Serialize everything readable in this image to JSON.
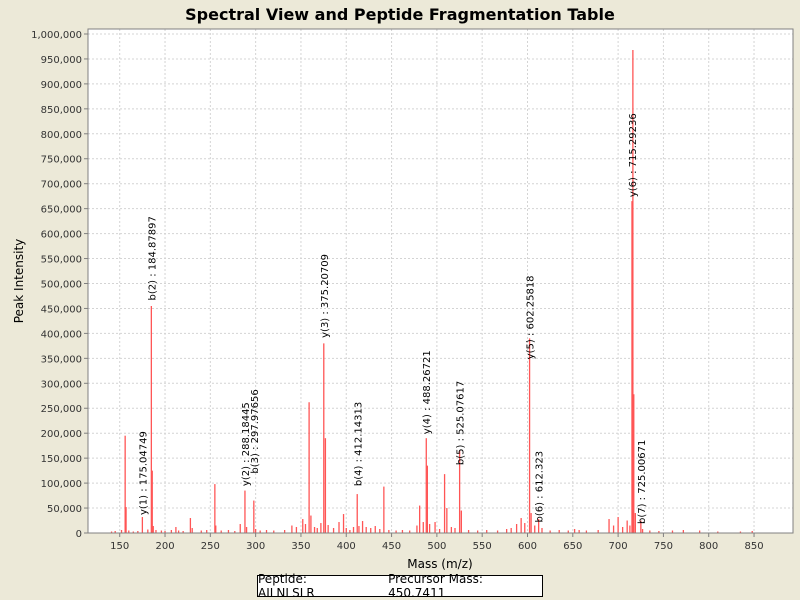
{
  "chart_data": {
    "type": "bar",
    "title": "Spectral View and Peptide Fragmentation Table",
    "xlabel": "Mass (m/z)",
    "ylabel": "Peak Intensity",
    "xlim": [
      115,
      893
    ],
    "ylim": [
      0,
      1010000
    ],
    "x_ticks": [
      150,
      200,
      250,
      300,
      350,
      400,
      450,
      500,
      550,
      600,
      650,
      700,
      750,
      800,
      850
    ],
    "y_ticks": [
      0,
      50000,
      100000,
      150000,
      200000,
      250000,
      300000,
      350000,
      400000,
      450000,
      500000,
      550000,
      600000,
      650000,
      700000,
      750000,
      800000,
      850000,
      900000,
      950000,
      1000000
    ],
    "y_tick_labels": [
      "0",
      "50,000",
      "100,000",
      "150,000",
      "200,000",
      "250,000",
      "300,000",
      "350,000",
      "400,000",
      "450,000",
      "500,000",
      "550,000",
      "600,000",
      "650,000",
      "700,000",
      "750,000",
      "800,000",
      "850,000",
      "900,000",
      "950,000",
      "1,000,000"
    ],
    "grid": true,
    "peak_color": "#ff5555",
    "peaks": [
      {
        "mz": 141,
        "intensity": 3000
      },
      {
        "mz": 145,
        "intensity": 4000
      },
      {
        "mz": 152,
        "intensity": 6000
      },
      {
        "mz": 156,
        "intensity": 195000
      },
      {
        "mz": 157,
        "intensity": 52000
      },
      {
        "mz": 160,
        "intensity": 5000
      },
      {
        "mz": 165,
        "intensity": 3000
      },
      {
        "mz": 170,
        "intensity": 4000
      },
      {
        "mz": 175.0,
        "intensity": 32000
      },
      {
        "mz": 181,
        "intensity": 7000
      },
      {
        "mz": 184.9,
        "intensity": 455000
      },
      {
        "mz": 185.9,
        "intensity": 125000
      },
      {
        "mz": 187,
        "intensity": 14000
      },
      {
        "mz": 190,
        "intensity": 6000
      },
      {
        "mz": 196,
        "intensity": 5000
      },
      {
        "mz": 200,
        "intensity": 4000
      },
      {
        "mz": 207,
        "intensity": 6000
      },
      {
        "mz": 212,
        "intensity": 12000
      },
      {
        "mz": 215,
        "intensity": 5000
      },
      {
        "mz": 220,
        "intensity": 4000
      },
      {
        "mz": 228,
        "intensity": 30000
      },
      {
        "mz": 230,
        "intensity": 10000
      },
      {
        "mz": 240,
        "intensity": 5000
      },
      {
        "mz": 246,
        "intensity": 6000
      },
      {
        "mz": 255,
        "intensity": 98000
      },
      {
        "mz": 256,
        "intensity": 15000
      },
      {
        "mz": 262,
        "intensity": 5000
      },
      {
        "mz": 270,
        "intensity": 6000
      },
      {
        "mz": 277,
        "intensity": 4000
      },
      {
        "mz": 283,
        "intensity": 18000
      },
      {
        "mz": 288.2,
        "intensity": 85000
      },
      {
        "mz": 290,
        "intensity": 12000
      },
      {
        "mz": 298.0,
        "intensity": 65000
      },
      {
        "mz": 300,
        "intensity": 8000
      },
      {
        "mz": 305,
        "intensity": 5000
      },
      {
        "mz": 312,
        "intensity": 6000
      },
      {
        "mz": 320,
        "intensity": 5000
      },
      {
        "mz": 332,
        "intensity": 6000
      },
      {
        "mz": 340,
        "intensity": 15000
      },
      {
        "mz": 345,
        "intensity": 12000
      },
      {
        "mz": 352,
        "intensity": 28000
      },
      {
        "mz": 355,
        "intensity": 18000
      },
      {
        "mz": 359,
        "intensity": 262000
      },
      {
        "mz": 361,
        "intensity": 35000
      },
      {
        "mz": 365,
        "intensity": 12000
      },
      {
        "mz": 368,
        "intensity": 10000
      },
      {
        "mz": 372,
        "intensity": 20000
      },
      {
        "mz": 375.2,
        "intensity": 380000
      },
      {
        "mz": 377,
        "intensity": 190000
      },
      {
        "mz": 380,
        "intensity": 16000
      },
      {
        "mz": 386,
        "intensity": 10000
      },
      {
        "mz": 392,
        "intensity": 22000
      },
      {
        "mz": 397,
        "intensity": 38000
      },
      {
        "mz": 400,
        "intensity": 10000
      },
      {
        "mz": 404,
        "intensity": 6000
      },
      {
        "mz": 408,
        "intensity": 12000
      },
      {
        "mz": 412.1,
        "intensity": 78000
      },
      {
        "mz": 414,
        "intensity": 14000
      },
      {
        "mz": 418,
        "intensity": 24000
      },
      {
        "mz": 422,
        "intensity": 12000
      },
      {
        "mz": 427,
        "intensity": 10000
      },
      {
        "mz": 432,
        "intensity": 14000
      },
      {
        "mz": 437,
        "intensity": 8000
      },
      {
        "mz": 441.5,
        "intensity": 93000
      },
      {
        "mz": 447,
        "intensity": 6000
      },
      {
        "mz": 455,
        "intensity": 5000
      },
      {
        "mz": 462,
        "intensity": 6000
      },
      {
        "mz": 470,
        "intensity": 5000
      },
      {
        "mz": 478,
        "intensity": 15000
      },
      {
        "mz": 481,
        "intensity": 55000
      },
      {
        "mz": 485,
        "intensity": 22000
      },
      {
        "mz": 488.3,
        "intensity": 190000
      },
      {
        "mz": 489.5,
        "intensity": 135000
      },
      {
        "mz": 492,
        "intensity": 18000
      },
      {
        "mz": 498,
        "intensity": 22000
      },
      {
        "mz": 503,
        "intensity": 8000
      },
      {
        "mz": 508.5,
        "intensity": 118000
      },
      {
        "mz": 511,
        "intensity": 50000
      },
      {
        "mz": 516,
        "intensity": 12000
      },
      {
        "mz": 520,
        "intensity": 10000
      },
      {
        "mz": 525.1,
        "intensity": 165000
      },
      {
        "mz": 527,
        "intensity": 45000
      },
      {
        "mz": 535,
        "intensity": 6000
      },
      {
        "mz": 545,
        "intensity": 5000
      },
      {
        "mz": 555,
        "intensity": 6000
      },
      {
        "mz": 567,
        "intensity": 5000
      },
      {
        "mz": 577,
        "intensity": 8000
      },
      {
        "mz": 582,
        "intensity": 10000
      },
      {
        "mz": 588,
        "intensity": 18000
      },
      {
        "mz": 593,
        "intensity": 30000
      },
      {
        "mz": 597,
        "intensity": 20000
      },
      {
        "mz": 602.3,
        "intensity": 390000
      },
      {
        "mz": 604,
        "intensity": 40000
      },
      {
        "mz": 608,
        "intensity": 15000
      },
      {
        "mz": 612.3,
        "intensity": 28000
      },
      {
        "mz": 616,
        "intensity": 10000
      },
      {
        "mz": 625,
        "intensity": 5000
      },
      {
        "mz": 635,
        "intensity": 6000
      },
      {
        "mz": 645,
        "intensity": 5000
      },
      {
        "mz": 652,
        "intensity": 8000
      },
      {
        "mz": 657,
        "intensity": 6000
      },
      {
        "mz": 665,
        "intensity": 5000
      },
      {
        "mz": 678,
        "intensity": 6000
      },
      {
        "mz": 690,
        "intensity": 28000
      },
      {
        "mz": 695,
        "intensity": 15000
      },
      {
        "mz": 700,
        "intensity": 32000
      },
      {
        "mz": 705,
        "intensity": 12000
      },
      {
        "mz": 710,
        "intensity": 25000
      },
      {
        "mz": 713,
        "intensity": 15000
      },
      {
        "mz": 715.3,
        "intensity": 665000
      },
      {
        "mz": 716.3,
        "intensity": 968000
      },
      {
        "mz": 717.3,
        "intensity": 278000
      },
      {
        "mz": 719,
        "intensity": 40000
      },
      {
        "mz": 725.1,
        "intensity": 25000
      },
      {
        "mz": 727,
        "intensity": 8000
      },
      {
        "mz": 735,
        "intensity": 5000
      },
      {
        "mz": 745,
        "intensity": 4000
      },
      {
        "mz": 760,
        "intensity": 5000
      },
      {
        "mz": 772,
        "intensity": 6000
      },
      {
        "mz": 790,
        "intensity": 5000
      },
      {
        "mz": 810,
        "intensity": 3000
      },
      {
        "mz": 835,
        "intensity": 3000
      },
      {
        "mz": 848,
        "intensity": 4000
      }
    ],
    "annotations": [
      {
        "mz": 175.04749,
        "y": 30000,
        "text": "y(1) : 175.04749"
      },
      {
        "mz": 184.87897,
        "y": 460000,
        "text": "b(2) : 184.87897"
      },
      {
        "mz": 288.18445,
        "y": 88000,
        "text": "y(2) : 288.18445"
      },
      {
        "mz": 297.97656,
        "y": 113000,
        "text": "b(3) : 297.97656"
      },
      {
        "mz": 375.20709,
        "y": 385000,
        "text": "y(3) : 375.20709"
      },
      {
        "mz": 412.14313,
        "y": 88000,
        "text": "b(4) : 412.14313"
      },
      {
        "mz": 488.26721,
        "y": 192000,
        "text": "y(4) : 488.26721"
      },
      {
        "mz": 525.07617,
        "y": 130000,
        "text": "b(5) : 525.07617"
      },
      {
        "mz": 602.25818,
        "y": 342000,
        "text": "y(5) : 602.25818"
      },
      {
        "mz": 612.323,
        "y": 15000,
        "text": "b(6) : 612.323"
      },
      {
        "mz": 715.29236,
        "y": 667000,
        "text": "y(6) : 715.29236"
      },
      {
        "mz": 725.00671,
        "y": 12000,
        "text": "b(7) : 725.00671"
      }
    ]
  },
  "legend": {
    "peptide": "Peptide: AILNLSLR",
    "precursor": "Precursor Mass: 450.7411"
  }
}
